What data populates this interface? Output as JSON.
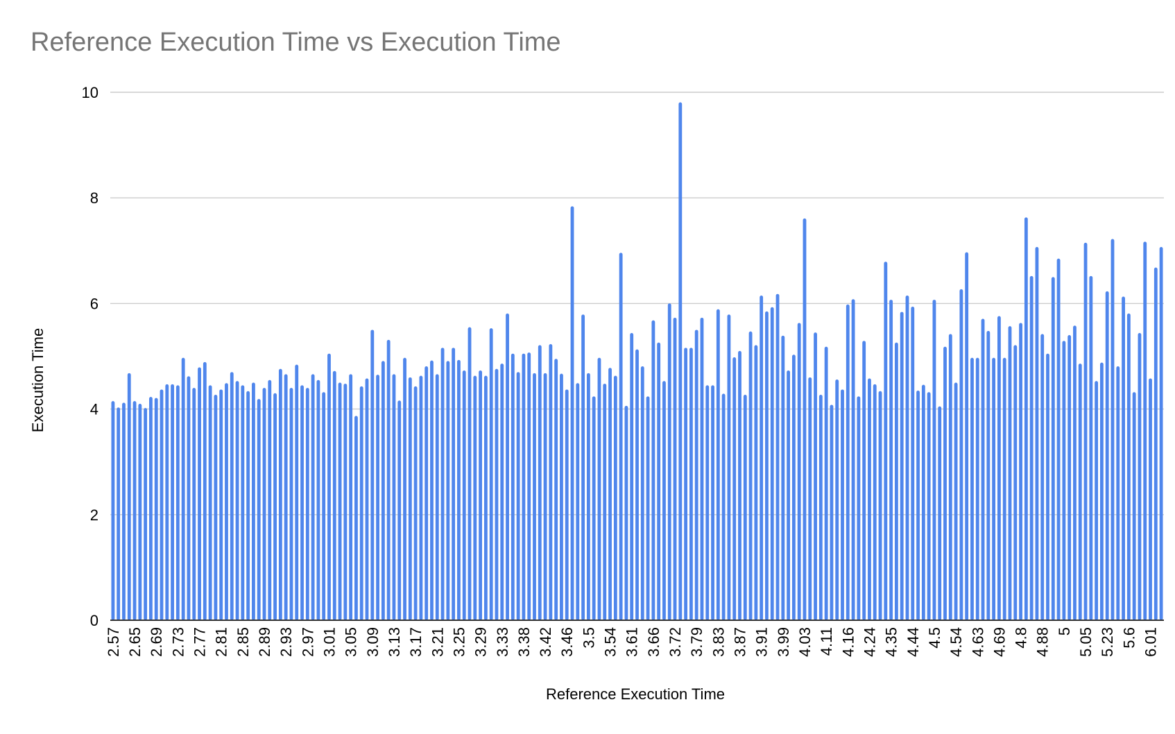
{
  "chart_data": {
    "type": "bar",
    "title": "Reference Execution Time vs Execution Time",
    "xlabel": "Reference Execution Time",
    "ylabel": "Execution Time",
    "ylim": [
      0,
      10
    ],
    "yticks": [
      "0",
      "2",
      "4",
      "6",
      "8",
      "10"
    ],
    "grid": true,
    "legend": "none",
    "bar_color": "#4f86ec",
    "grid_color": "#cccccc",
    "axis_color": "#333333",
    "xtick_labels": [
      "2.57",
      "2.65",
      "2.69",
      "2.73",
      "2.77",
      "2.81",
      "2.85",
      "2.89",
      "2.93",
      "2.97",
      "3.01",
      "3.05",
      "3.09",
      "3.13",
      "3.17",
      "3.21",
      "3.25",
      "3.29",
      "3.33",
      "3.38",
      "3.42",
      "3.46",
      "3.5",
      "3.54",
      "3.61",
      "3.66",
      "3.72",
      "3.79",
      "3.83",
      "3.87",
      "3.91",
      "3.99",
      "4.03",
      "4.11",
      "4.16",
      "4.24",
      "4.35",
      "4.44",
      "4.5",
      "4.54",
      "4.63",
      "4.69",
      "4.8",
      "4.88",
      "5",
      "5.05",
      "5.23",
      "5.6",
      "6.01"
    ],
    "xtick_every": 4,
    "series": [
      {
        "values": [
          4.15,
          4.03,
          4.12,
          4.68,
          4.15,
          4.1,
          4.02,
          4.23,
          4.21,
          4.37,
          4.47,
          4.47,
          4.45,
          4.97,
          4.62,
          4.4,
          4.79,
          4.89,
          4.45,
          4.27,
          4.37,
          4.49,
          4.7,
          4.53,
          4.45,
          4.34,
          4.5,
          4.19,
          4.4,
          4.55,
          4.3,
          4.76,
          4.66,
          4.4,
          4.84,
          4.45,
          4.4,
          4.66,
          4.55,
          4.32,
          5.05,
          4.72,
          4.5,
          4.48,
          4.66,
          3.87,
          4.43,
          4.58,
          5.5,
          4.65,
          4.91,
          5.31,
          4.66,
          4.16,
          4.97,
          4.6,
          4.43,
          4.63,
          4.81,
          4.92,
          4.66,
          5.16,
          4.91,
          5.16,
          4.93,
          4.73,
          5.55,
          4.63,
          4.73,
          4.63,
          5.53,
          4.76,
          4.86,
          5.81,
          5.05,
          4.7,
          5.05,
          5.07,
          4.68,
          5.21,
          4.68,
          5.23,
          4.95,
          4.67,
          4.37,
          7.84,
          4.49,
          5.79,
          4.68,
          4.24,
          4.97,
          4.48,
          4.78,
          4.63,
          6.96,
          4.06,
          5.44,
          5.13,
          4.81,
          4.24,
          5.68,
          5.26,
          4.53,
          6.0,
          5.73,
          9.81,
          5.16,
          5.16,
          5.5,
          5.73,
          4.45,
          4.45,
          5.89,
          4.29,
          5.79,
          4.98,
          5.1,
          4.27,
          5.47,
          5.21,
          6.15,
          5.85,
          5.93,
          6.18,
          5.39,
          4.73,
          5.03,
          5.63,
          7.61,
          4.6,
          5.45,
          4.27,
          5.18,
          4.08,
          4.56,
          4.37,
          5.98,
          6.08,
          4.24,
          5.29,
          4.58,
          4.47,
          4.34,
          6.79,
          6.07,
          5.26,
          5.84,
          6.15,
          5.94,
          4.35,
          4.46,
          4.32,
          6.07,
          4.05,
          5.18,
          5.42,
          4.5,
          6.27,
          6.97,
          4.97,
          4.97,
          5.71,
          5.48,
          4.97,
          5.76,
          4.97,
          5.57,
          5.21,
          5.63,
          7.63,
          6.52,
          7.07,
          5.42,
          5.05,
          6.5,
          6.85,
          5.29,
          5.4,
          5.58,
          4.86,
          7.15,
          6.52,
          4.53,
          4.88,
          6.23,
          7.22,
          4.81,
          6.13,
          5.81,
          4.32,
          5.44,
          7.17,
          4.58,
          6.68,
          7.07
        ]
      }
    ]
  }
}
